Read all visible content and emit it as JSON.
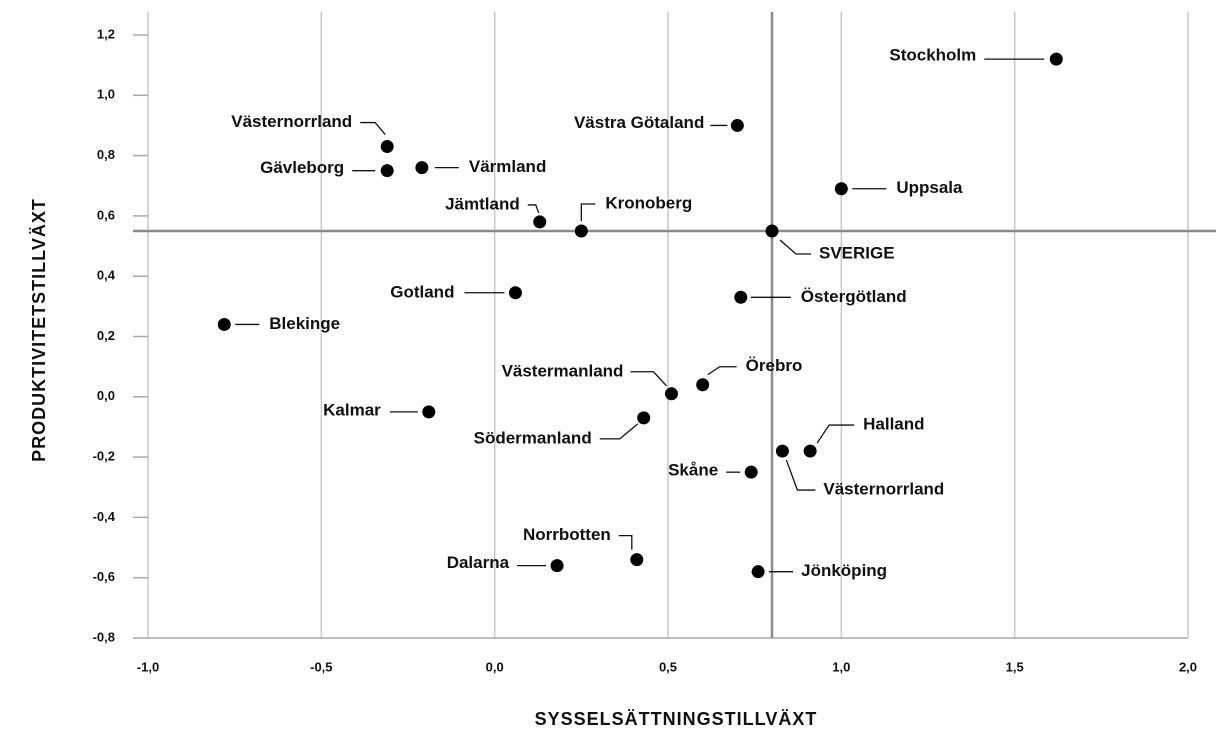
{
  "chart_data": {
    "type": "scatter",
    "x_label": "SYSSELSÄTTNINGSTILLVÄXT",
    "y_label": "PRODUKTIVITETSTILLVÄXT",
    "xlim": [
      -1.0,
      2.0
    ],
    "ylim": [
      -0.8,
      1.2
    ],
    "xticks": [
      {
        "value": -1.0,
        "label": "-1,0"
      },
      {
        "value": -0.5,
        "label": "-0,5"
      },
      {
        "value": 0.0,
        "label": "0,0"
      },
      {
        "value": 0.5,
        "label": "0,5"
      },
      {
        "value": 1.0,
        "label": "1,0"
      },
      {
        "value": 1.5,
        "label": "1,5"
      },
      {
        "value": 2.0,
        "label": "2,0"
      }
    ],
    "yticks": [
      {
        "value": 1.2,
        "label": "1,2"
      },
      {
        "value": 1.0,
        "label": "1,0"
      },
      {
        "value": 0.8,
        "label": "0,8"
      },
      {
        "value": 0.6,
        "label": "0,6"
      },
      {
        "value": 0.4,
        "label": "0,4"
      },
      {
        "value": 0.2,
        "label": "0,2"
      },
      {
        "value": 0.0,
        "label": "0,0"
      },
      {
        "value": -0.2,
        "label": "-0,2"
      },
      {
        "value": -0.4,
        "label": "-0,4"
      },
      {
        "value": -0.6,
        "label": "-0,6"
      },
      {
        "value": -0.8,
        "label": "-0,8"
      }
    ],
    "reference_x": 0.8,
    "reference_y": 0.55,
    "color": "#000000",
    "points": [
      {
        "name": "Stockholm",
        "x": 1.62,
        "y": 1.12
      },
      {
        "name": "Västra Götaland",
        "x": 0.7,
        "y": 0.9
      },
      {
        "name": "Västernorrland",
        "x": -0.31,
        "y": 0.83
      },
      {
        "name": "Värmland",
        "x": -0.21,
        "y": 0.76
      },
      {
        "name": "Gävleborg",
        "x": -0.31,
        "y": 0.75
      },
      {
        "name": "Uppsala",
        "x": 1.0,
        "y": 0.69
      },
      {
        "name": "Jämtland",
        "x": 0.13,
        "y": 0.58
      },
      {
        "name": "Kronoberg",
        "x": 0.25,
        "y": 0.55
      },
      {
        "name": "SVERIGE",
        "x": 0.8,
        "y": 0.55
      },
      {
        "name": "Gotland",
        "x": 0.06,
        "y": 0.345
      },
      {
        "name": "Östergötland",
        "x": 0.71,
        "y": 0.33
      },
      {
        "name": "Blekinge",
        "x": -0.78,
        "y": 0.24
      },
      {
        "name": "Västermanland",
        "x": 0.51,
        "y": 0.01
      },
      {
        "name": "Örebro",
        "x": 0.6,
        "y": 0.04
      },
      {
        "name": "Kalmar",
        "x": -0.19,
        "y": -0.05
      },
      {
        "name": "Södermanland",
        "x": 0.43,
        "y": -0.07
      },
      {
        "name": "Halland",
        "x": 0.91,
        "y": -0.18
      },
      {
        "name": "Västernorrland",
        "x": 0.83,
        "y": -0.18
      },
      {
        "name": "Skåne",
        "x": 0.74,
        "y": -0.25
      },
      {
        "name": "Norrbotten",
        "x": 0.41,
        "y": -0.54
      },
      {
        "name": "Dalarna",
        "x": 0.18,
        "y": -0.56
      },
      {
        "name": "Jönköping",
        "x": 0.76,
        "y": -0.58
      }
    ]
  }
}
